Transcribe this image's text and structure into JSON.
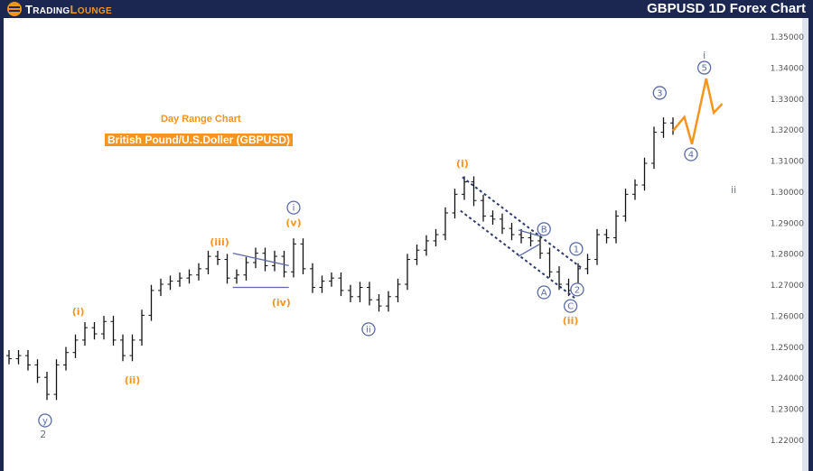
{
  "header": {
    "logo_part1": "TradingLounge",
    "title": "GBPUSD 1D Forex Chart"
  },
  "labels": {
    "chart_type": "Day Range Chart",
    "instrument": "British Pound/U.S.Doller (GBPUSD)"
  },
  "colors": {
    "header": "#1b2750",
    "accent": "#f7941d",
    "wave_gray": "#6b7280",
    "circle": "#5a6aa8",
    "bars": "#111111"
  },
  "chart_data": {
    "type": "ohlc",
    "ylim": [
      1.215,
      1.355
    ],
    "yticks": [
      "1.35000",
      "1.34000",
      "1.33000",
      "1.32000",
      "1.31000",
      "1.30000",
      "1.29000",
      "1.28000",
      "1.27000",
      "1.26000",
      "1.25000",
      "1.24000",
      "1.23000",
      "1.22000"
    ],
    "closes": [
      1.246,
      1.247,
      1.244,
      1.24,
      1.2345,
      1.244,
      1.248,
      1.252,
      1.256,
      1.254,
      1.258,
      1.252,
      1.247,
      1.252,
      1.26,
      1.268,
      1.27,
      1.271,
      1.272,
      1.273,
      1.275,
      1.279,
      1.278,
      1.272,
      1.273,
      1.277,
      1.28,
      1.276,
      1.279,
      1.274,
      1.283,
      1.275,
      1.269,
      1.271,
      1.272,
      1.268,
      1.266,
      1.269,
      1.265,
      1.263,
      1.266,
      1.27,
      1.278,
      1.281,
      1.284,
      1.286,
      1.293,
      1.299,
      1.303,
      1.297,
      1.292,
      1.291,
      1.288,
      1.286,
      1.285,
      1.284,
      1.28,
      1.274,
      1.27,
      1.268,
      1.275,
      1.278,
      1.286,
      1.285,
      1.292,
      1.299,
      1.302,
      1.309,
      1.319,
      1.322,
      1.32
    ],
    "wave_labels": [
      {
        "text": "(i)",
        "bar": 7.3,
        "price": 1.2613,
        "style": "orange"
      },
      {
        "text": "(ii)",
        "bar": 13,
        "price": 1.2392,
        "style": "orange"
      },
      {
        "text": "(iii)",
        "bar": 22.2,
        "price": 1.2837,
        "style": "orange"
      },
      {
        "text": "(iv)",
        "bar": 28.7,
        "price": 1.2642,
        "style": "orange"
      },
      {
        "text": "(v)",
        "bar": 30,
        "price": 1.29,
        "style": "orange"
      },
      {
        "text": "i",
        "bar": 30,
        "price": 1.2947,
        "style": "circle"
      },
      {
        "text": "ii",
        "bar": 37.9,
        "price": 1.2555,
        "style": "circle"
      },
      {
        "text": "(i)",
        "bar": 47.8,
        "price": 1.309,
        "style": "orange"
      },
      {
        "text": "A",
        "bar": 56.4,
        "price": 1.2674,
        "style": "circle"
      },
      {
        "text": "B",
        "bar": 56.4,
        "price": 1.2878,
        "style": "circle"
      },
      {
        "text": "C",
        "bar": 59.2,
        "price": 1.263,
        "style": "circle"
      },
      {
        "text": "(ii)",
        "bar": 59.2,
        "price": 1.2584,
        "style": "orange"
      },
      {
        "text": "1",
        "bar": 59.8,
        "price": 1.2814,
        "style": "circle"
      },
      {
        "text": "2",
        "bar": 59.9,
        "price": 1.2683,
        "style": "circle"
      },
      {
        "text": "3",
        "bar": 68.6,
        "price": 1.3317,
        "style": "circle"
      },
      {
        "text": "4",
        "bar": 71.9,
        "price": 1.3119,
        "style": "circle"
      },
      {
        "text": "5",
        "bar": 73.3,
        "price": 1.3398,
        "style": "circle"
      },
      {
        "text": "i",
        "bar": 73.3,
        "price": 1.3439,
        "style": "gray"
      },
      {
        "text": "ii",
        "bar": 76.4,
        "price": 1.3005,
        "style": "gray"
      },
      {
        "text": "y",
        "bar": 3.8,
        "price": 1.2261,
        "style": "circle"
      },
      {
        "text": "2",
        "bar": 3.6,
        "price": 1.2218,
        "style": "gray"
      }
    ],
    "projection": [
      [
        70,
        1.3195
      ],
      [
        71.2,
        1.3239
      ],
      [
        72,
        1.3152
      ],
      [
        73.5,
        1.3363
      ],
      [
        74.3,
        1.3253
      ],
      [
        75.2,
        1.3282
      ]
    ],
    "channel": {
      "upper": [
        [
          47.8,
          1.3045
        ],
        [
          60.3,
          1.2754
        ]
      ],
      "lower": [
        [
          47.6,
          1.2937
        ],
        [
          59.8,
          1.2652
        ]
      ]
    },
    "triangles": [
      {
        "upper": [
          [
            23.6,
            1.28
          ],
          [
            29.5,
            1.276
          ]
        ],
        "lower": [
          [
            23.6,
            1.269
          ],
          [
            29.5,
            1.269
          ]
        ]
      },
      {
        "upper": [
          [
            53.7,
            1.2875
          ],
          [
            56,
            1.2855
          ]
        ],
        "lower": [
          [
            53.7,
            1.279
          ],
          [
            56,
            1.283
          ]
        ]
      }
    ]
  }
}
